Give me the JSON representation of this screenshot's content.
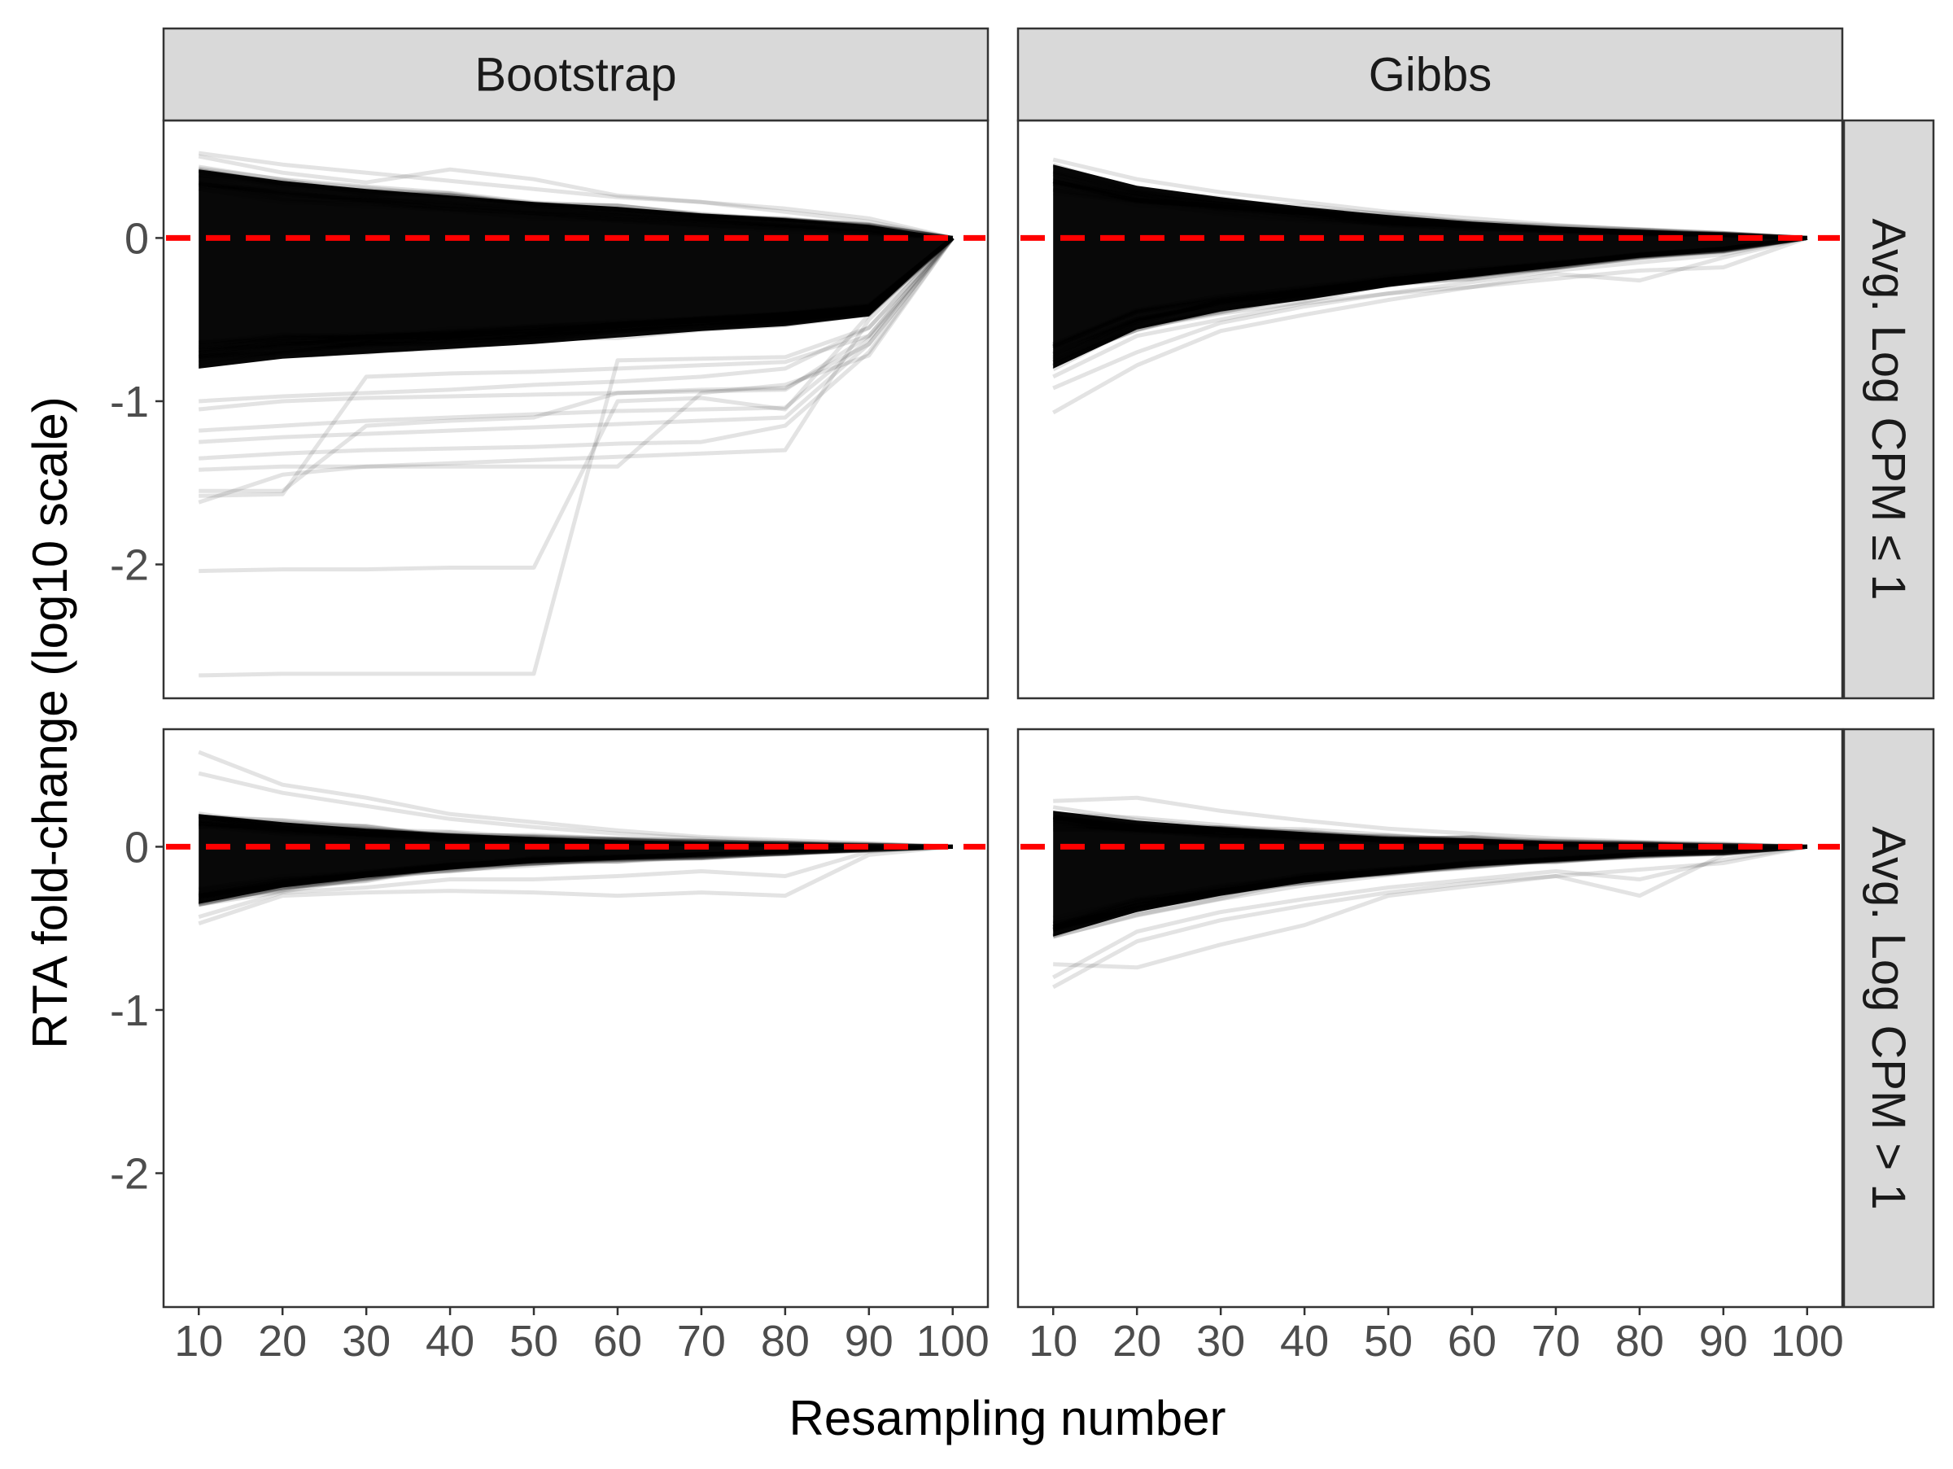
{
  "chart_data": {
    "type": "line",
    "xlabel": "Resampling number",
    "ylabel": "RTA fold-change (log10 scale)",
    "x": [
      10,
      20,
      30,
      40,
      50,
      60,
      70,
      80,
      90,
      100
    ],
    "x_ticks": [
      "10",
      "20",
      "30",
      "40",
      "50",
      "60",
      "70",
      "80",
      "90",
      "100"
    ],
    "y_ticks": [
      "0",
      "-1",
      "-2"
    ],
    "y_tick_values": [
      0,
      -1,
      -2
    ],
    "xlim": [
      5.8,
      104.2
    ],
    "ylim": [
      -2.82,
      0.72
    ],
    "grid": false,
    "legend": "none",
    "reference_line": {
      "y": 0,
      "style": "dashed",
      "color": "#ff0000"
    },
    "line_color": "#000000",
    "column_facets": [
      "Bootstrap",
      "Gibbs"
    ],
    "row_facets": [
      "Avg. Log CPM ≤ 1",
      "Avg. Log CPM > 1"
    ],
    "panels": [
      {
        "column": "Bootstrap",
        "row": "Avg. Log CPM ≤ 1",
        "band_upper": [
          0.42,
          0.35,
          0.3,
          0.26,
          0.22,
          0.19,
          0.15,
          0.12,
          0.08,
          0.0
        ],
        "band_lower": [
          -0.8,
          -0.74,
          -0.71,
          -0.68,
          -0.65,
          -0.61,
          -0.57,
          -0.54,
          -0.48,
          0.0
        ],
        "series": [
          {
            "values": [
              0.52,
              0.45,
              0.4,
              0.35,
              0.3,
              0.25,
              0.22,
              0.18,
              0.12,
              0.0
            ]
          },
          {
            "values": [
              0.5,
              0.4,
              0.34,
              0.42,
              0.36,
              0.26,
              0.22,
              0.16,
              0.1,
              0.0
            ]
          },
          {
            "values": [
              -1.0,
              -0.97,
              -0.95,
              -0.93,
              -0.9,
              -0.88,
              -0.85,
              -0.8,
              -0.55,
              0.0
            ]
          },
          {
            "values": [
              -1.05,
              -1.0,
              -0.98,
              -0.97,
              -0.96,
              -0.95,
              -0.94,
              -0.93,
              -0.6,
              0.0
            ]
          },
          {
            "values": [
              -1.18,
              -1.15,
              -1.12,
              -1.1,
              -1.08,
              -1.06,
              -1.05,
              -1.04,
              -0.62,
              0.0
            ]
          },
          {
            "values": [
              -1.25,
              -1.22,
              -1.2,
              -1.18,
              -1.16,
              -1.14,
              -1.12,
              -1.1,
              -0.65,
              0.0
            ]
          },
          {
            "values": [
              -1.35,
              -1.32,
              -1.3,
              -1.29,
              -1.28,
              -1.26,
              -1.25,
              -1.15,
              -0.7,
              0.0
            ]
          },
          {
            "values": [
              -1.42,
              -1.4,
              -1.4,
              -1.4,
              -1.4,
              -1.4,
              -0.95,
              -0.9,
              -0.72,
              0.0
            ]
          },
          {
            "values": [
              -1.55,
              -1.55,
              -1.15,
              -1.12,
              -1.1,
              -0.95,
              -0.93,
              -0.92,
              -0.65,
              0.0
            ]
          },
          {
            "values": [
              -1.58,
              -1.57,
              -0.85,
              -0.83,
              -0.82,
              -0.8,
              -0.78,
              -0.76,
              -0.6,
              0.0
            ]
          },
          {
            "values": [
              -1.62,
              -1.45,
              -1.4,
              -1.38,
              -1.36,
              -1.34,
              -1.32,
              -1.3,
              -0.5,
              0.0
            ]
          },
          {
            "values": [
              -2.04,
              -2.03,
              -2.03,
              -2.02,
              -2.02,
              -1.0,
              -0.98,
              -1.05,
              -0.47,
              0.0
            ]
          },
          {
            "values": [
              -2.68,
              -2.67,
              -2.67,
              -2.67,
              -2.67,
              -0.75,
              -0.74,
              -0.73,
              -0.55,
              0.0
            ]
          }
        ]
      },
      {
        "column": "Gibbs",
        "row": "Avg. Log CPM ≤ 1",
        "band_upper": [
          0.45,
          0.32,
          0.25,
          0.19,
          0.14,
          0.1,
          0.07,
          0.05,
          0.03,
          0.0
        ],
        "band_lower": [
          -0.8,
          -0.56,
          -0.45,
          -0.38,
          -0.3,
          -0.24,
          -0.18,
          -0.12,
          -0.08,
          0.0
        ],
        "series": [
          {
            "values": [
              0.48,
              0.36,
              0.28,
              0.22,
              0.16,
              0.12,
              0.08,
              0.05,
              0.03,
              0.0
            ]
          },
          {
            "values": [
              -0.92,
              -0.7,
              -0.52,
              -0.42,
              -0.34,
              -0.27,
              -0.2,
              -0.15,
              -0.1,
              0.0
            ]
          },
          {
            "values": [
              -1.07,
              -0.78,
              -0.57,
              -0.47,
              -0.38,
              -0.3,
              -0.25,
              -0.2,
              -0.18,
              0.0
            ]
          },
          {
            "values": [
              -0.85,
              -0.6,
              -0.5,
              -0.4,
              -0.34,
              -0.3,
              -0.22,
              -0.26,
              -0.12,
              0.0
            ]
          }
        ]
      },
      {
        "column": "Bootstrap",
        "row": "Avg. Log CPM > 1",
        "band_upper": [
          0.2,
          0.15,
          0.11,
          0.08,
          0.06,
          0.04,
          0.03,
          0.02,
          0.01,
          0.0
        ],
        "band_lower": [
          -0.35,
          -0.25,
          -0.19,
          -0.14,
          -0.1,
          -0.08,
          -0.06,
          -0.04,
          -0.02,
          0.0
        ],
        "series": [
          {
            "values": [
              0.58,
              0.38,
              0.3,
              0.2,
              0.15,
              0.1,
              0.06,
              0.04,
              0.02,
              0.0
            ]
          },
          {
            "values": [
              0.45,
              0.33,
              0.25,
              0.17,
              0.12,
              0.08,
              0.05,
              0.03,
              0.02,
              0.0
            ]
          },
          {
            "values": [
              -0.47,
              -0.3,
              -0.28,
              -0.27,
              -0.28,
              -0.3,
              -0.28,
              -0.3,
              -0.05,
              0.0
            ]
          },
          {
            "values": [
              -0.43,
              -0.28,
              -0.25,
              -0.2,
              -0.2,
              -0.18,
              -0.15,
              -0.18,
              -0.03,
              0.0
            ]
          }
        ]
      },
      {
        "column": "Gibbs",
        "row": "Avg. Log CPM > 1",
        "band_upper": [
          0.22,
          0.16,
          0.12,
          0.09,
          0.06,
          0.05,
          0.03,
          0.02,
          0.01,
          0.0
        ],
        "band_lower": [
          -0.55,
          -0.4,
          -0.3,
          -0.22,
          -0.17,
          -0.12,
          -0.09,
          -0.06,
          -0.04,
          0.0
        ],
        "series": [
          {
            "values": [
              0.28,
              0.3,
              0.22,
              0.16,
              0.11,
              0.08,
              0.05,
              0.03,
              0.02,
              0.0
            ]
          },
          {
            "values": [
              -0.72,
              -0.74,
              -0.6,
              -0.48,
              -0.3,
              -0.24,
              -0.18,
              -0.3,
              -0.05,
              0.0
            ]
          },
          {
            "values": [
              -0.86,
              -0.58,
              -0.45,
              -0.36,
              -0.28,
              -0.22,
              -0.18,
              -0.14,
              -0.1,
              0.0
            ]
          },
          {
            "values": [
              -0.8,
              -0.52,
              -0.4,
              -0.32,
              -0.25,
              -0.2,
              -0.15,
              -0.2,
              -0.08,
              0.0
            ]
          }
        ]
      }
    ]
  }
}
